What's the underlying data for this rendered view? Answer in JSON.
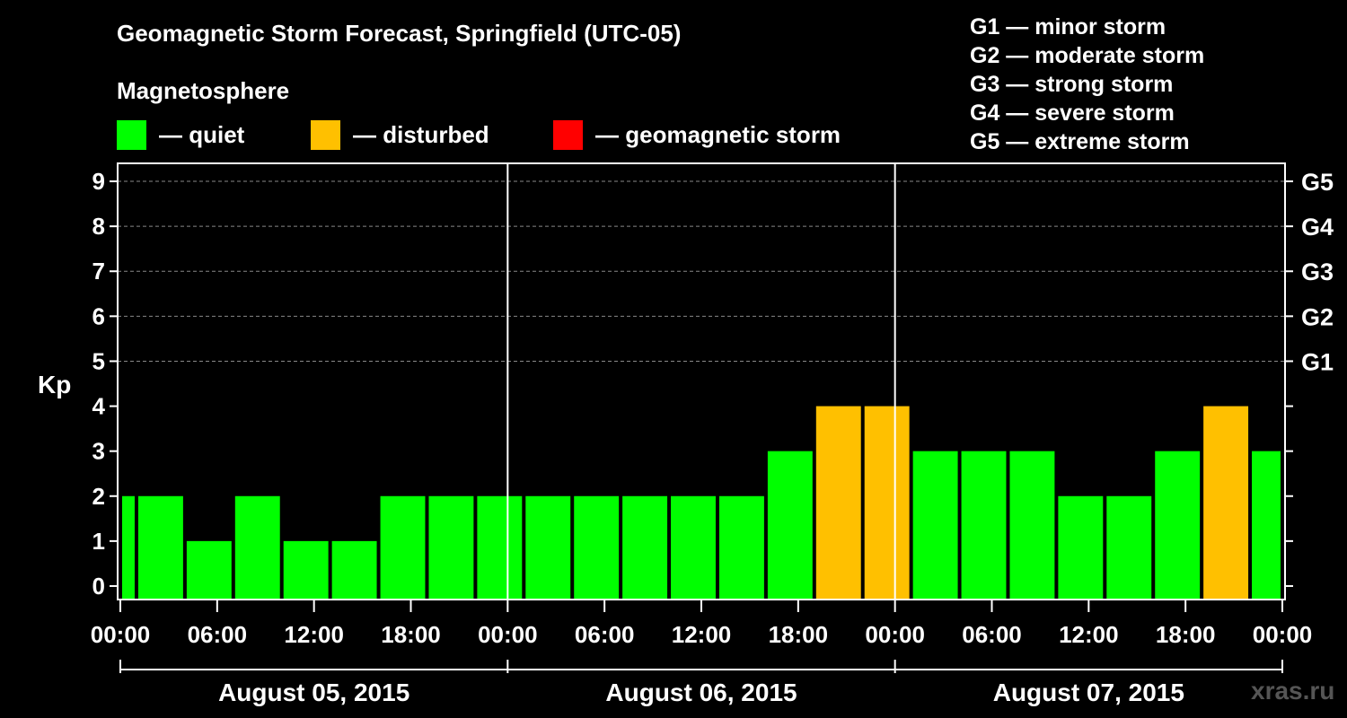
{
  "title": "Geomagnetic Storm Forecast, Springfield (UTC-05)",
  "legend": {
    "heading": "Magnetosphere",
    "items": [
      {
        "label": "— quiet",
        "color": "#00ff00"
      },
      {
        "label": "— disturbed",
        "color": "#ffc000"
      },
      {
        "label": "— geomagnetic storm",
        "color": "#ff0000"
      }
    ]
  },
  "storm_levels": [
    "G1 — minor storm",
    "G2 — moderate storm",
    "G3 — strong storm",
    "G4 — severe storm",
    "G5 — extreme storm"
  ],
  "watermark": "xras.ru",
  "chart_data": {
    "type": "bar",
    "ylabel": "Kp",
    "ylim": [
      -0.3,
      9.4
    ],
    "yticks": [
      0,
      1,
      2,
      3,
      4,
      5,
      6,
      7,
      8,
      9
    ],
    "right_ticks": [
      {
        "kp": 5,
        "label": "G1"
      },
      {
        "kp": 6,
        "label": "G2"
      },
      {
        "kp": 7,
        "label": "G3"
      },
      {
        "kp": 8,
        "label": "G4"
      },
      {
        "kp": 9,
        "label": "G5"
      }
    ],
    "grid_dashed_from_kp": 5,
    "x_hours_range": [
      0,
      72
    ],
    "bar_interval_hours": 3,
    "x_tick_labels": [
      "00:00",
      "06:00",
      "12:00",
      "18:00",
      "00:00",
      "06:00",
      "12:00",
      "18:00",
      "00:00",
      "06:00",
      "12:00",
      "18:00",
      "00:00"
    ],
    "day_labels": [
      "August 05, 2015",
      "August 06, 2015",
      "August 07, 2015"
    ],
    "day_dividers_hours": [
      24,
      48
    ],
    "bars": [
      {
        "start": 0,
        "end": 1,
        "kp": 2
      },
      {
        "start": 1,
        "end": 4,
        "kp": 2
      },
      {
        "start": 4,
        "end": 7,
        "kp": 1
      },
      {
        "start": 7,
        "end": 10,
        "kp": 2
      },
      {
        "start": 10,
        "end": 13,
        "kp": 1
      },
      {
        "start": 13,
        "end": 16,
        "kp": 1
      },
      {
        "start": 16,
        "end": 19,
        "kp": 2
      },
      {
        "start": 19,
        "end": 22,
        "kp": 2
      },
      {
        "start": 22,
        "end": 25,
        "kp": 2
      },
      {
        "start": 25,
        "end": 28,
        "kp": 2
      },
      {
        "start": 28,
        "end": 31,
        "kp": 2
      },
      {
        "start": 31,
        "end": 34,
        "kp": 2
      },
      {
        "start": 34,
        "end": 37,
        "kp": 2
      },
      {
        "start": 37,
        "end": 40,
        "kp": 2
      },
      {
        "start": 40,
        "end": 43,
        "kp": 3
      },
      {
        "start": 43,
        "end": 46,
        "kp": 4
      },
      {
        "start": 46,
        "end": 49,
        "kp": 4
      },
      {
        "start": 49,
        "end": 52,
        "kp": 3
      },
      {
        "start": 52,
        "end": 55,
        "kp": 3
      },
      {
        "start": 55,
        "end": 58,
        "kp": 3
      },
      {
        "start": 58,
        "end": 61,
        "kp": 2
      },
      {
        "start": 61,
        "end": 64,
        "kp": 2
      },
      {
        "start": 64,
        "end": 67,
        "kp": 3
      },
      {
        "start": 67,
        "end": 70,
        "kp": 4
      },
      {
        "start": 70,
        "end": 72,
        "kp": 3
      }
    ]
  }
}
